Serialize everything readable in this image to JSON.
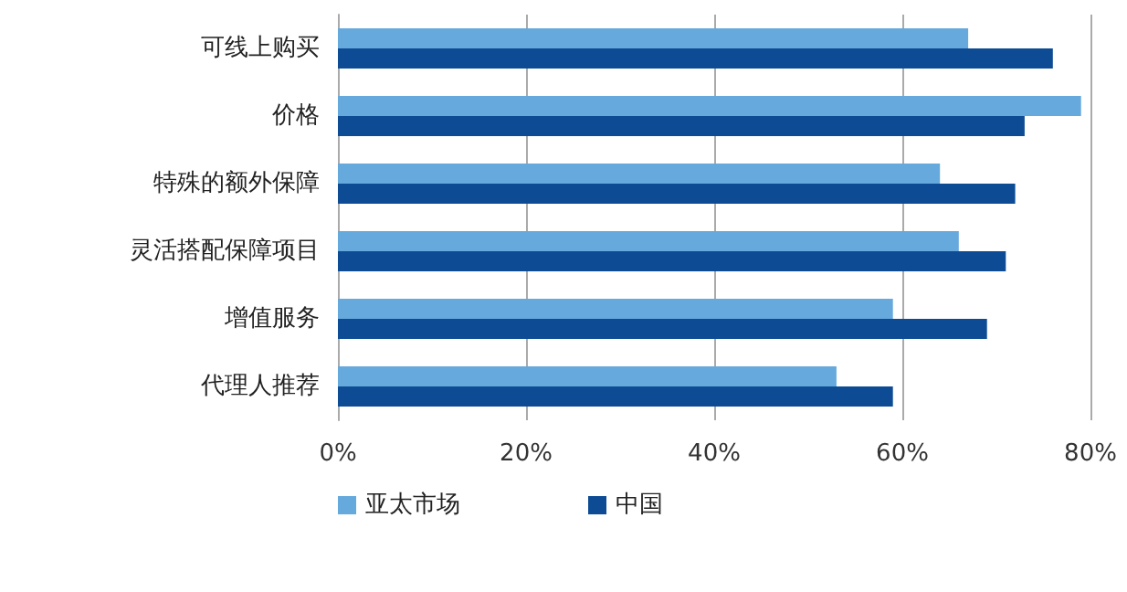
{
  "chart_data": {
    "type": "bar",
    "orientation": "horizontal",
    "categories": [
      "可线上购买",
      "价格",
      "特殊的额外保障",
      "灵活搭配保障项目",
      "增值服务",
      "代理人推荐"
    ],
    "series": [
      {
        "name": "亚太市场",
        "color": "#66a9dd",
        "values": [
          67,
          79,
          64,
          66,
          59,
          53
        ]
      },
      {
        "name": "中国",
        "color": "#0d4c94",
        "values": [
          76,
          73,
          72,
          71,
          69,
          59
        ]
      }
    ],
    "xlim": [
      0,
      80
    ],
    "xticks": [
      {
        "value": 0,
        "label": "0%"
      },
      {
        "value": 20,
        "label": "20%"
      },
      {
        "value": 40,
        "label": "40%"
      },
      {
        "value": 60,
        "label": "60%"
      },
      {
        "value": 80,
        "label": "80%"
      }
    ],
    "grid": "x",
    "legend": "bottom left"
  }
}
